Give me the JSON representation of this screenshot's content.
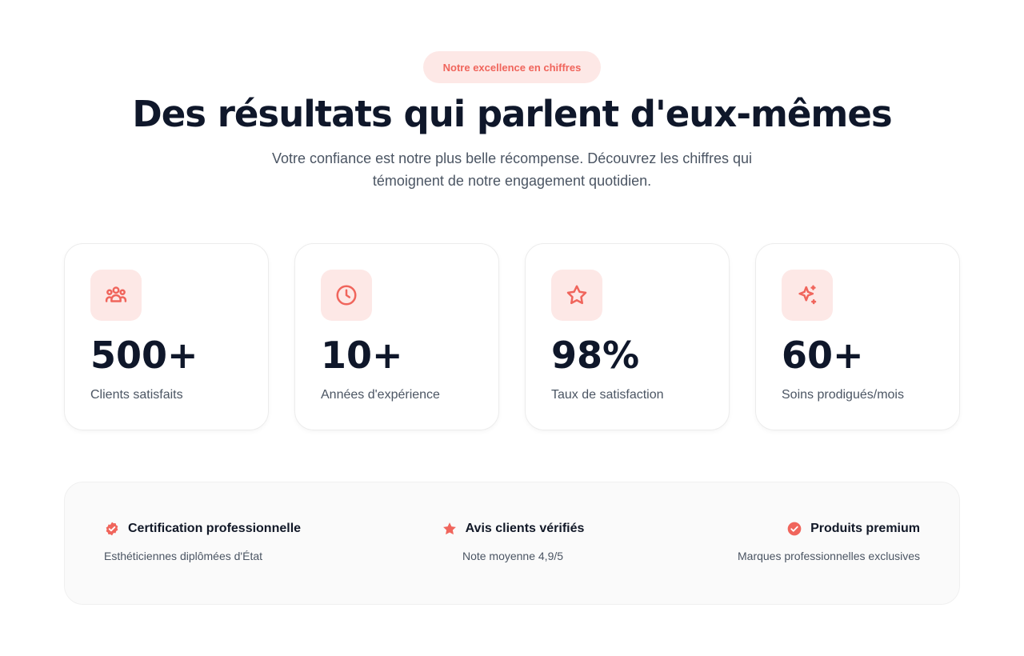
{
  "badge": "Notre excellence en chiffres",
  "title": "Des résultats qui parlent d'eux-mêmes",
  "subtitle": "Votre confiance est notre plus belle récompense. Découvrez les chiffres qui témoignent de notre engagement quotidien.",
  "colors": {
    "accent": "#f0655c",
    "accent_bg": "#fde8e6",
    "heading": "#0f172a",
    "text": "#4b5563"
  },
  "stats": [
    {
      "icon": "users-icon",
      "value": "500+",
      "label": "Clients satisfaits"
    },
    {
      "icon": "clock-icon",
      "value": "10+",
      "label": "Années d'expérience"
    },
    {
      "icon": "star-icon",
      "value": "98%",
      "label": "Taux de satisfaction"
    },
    {
      "icon": "sparkles-icon",
      "value": "60+",
      "label": "Soins prodigués/mois"
    }
  ],
  "features": [
    {
      "icon": "badge-check-icon",
      "title": "Certification professionnelle",
      "desc": "Esthéticiennes diplômées d'État"
    },
    {
      "icon": "star-filled-icon",
      "title": "Avis clients vérifiés",
      "desc": "Note moyenne 4,9/5"
    },
    {
      "icon": "check-circle-icon",
      "title": "Produits premium",
      "desc": "Marques professionnelles exclusives"
    }
  ]
}
